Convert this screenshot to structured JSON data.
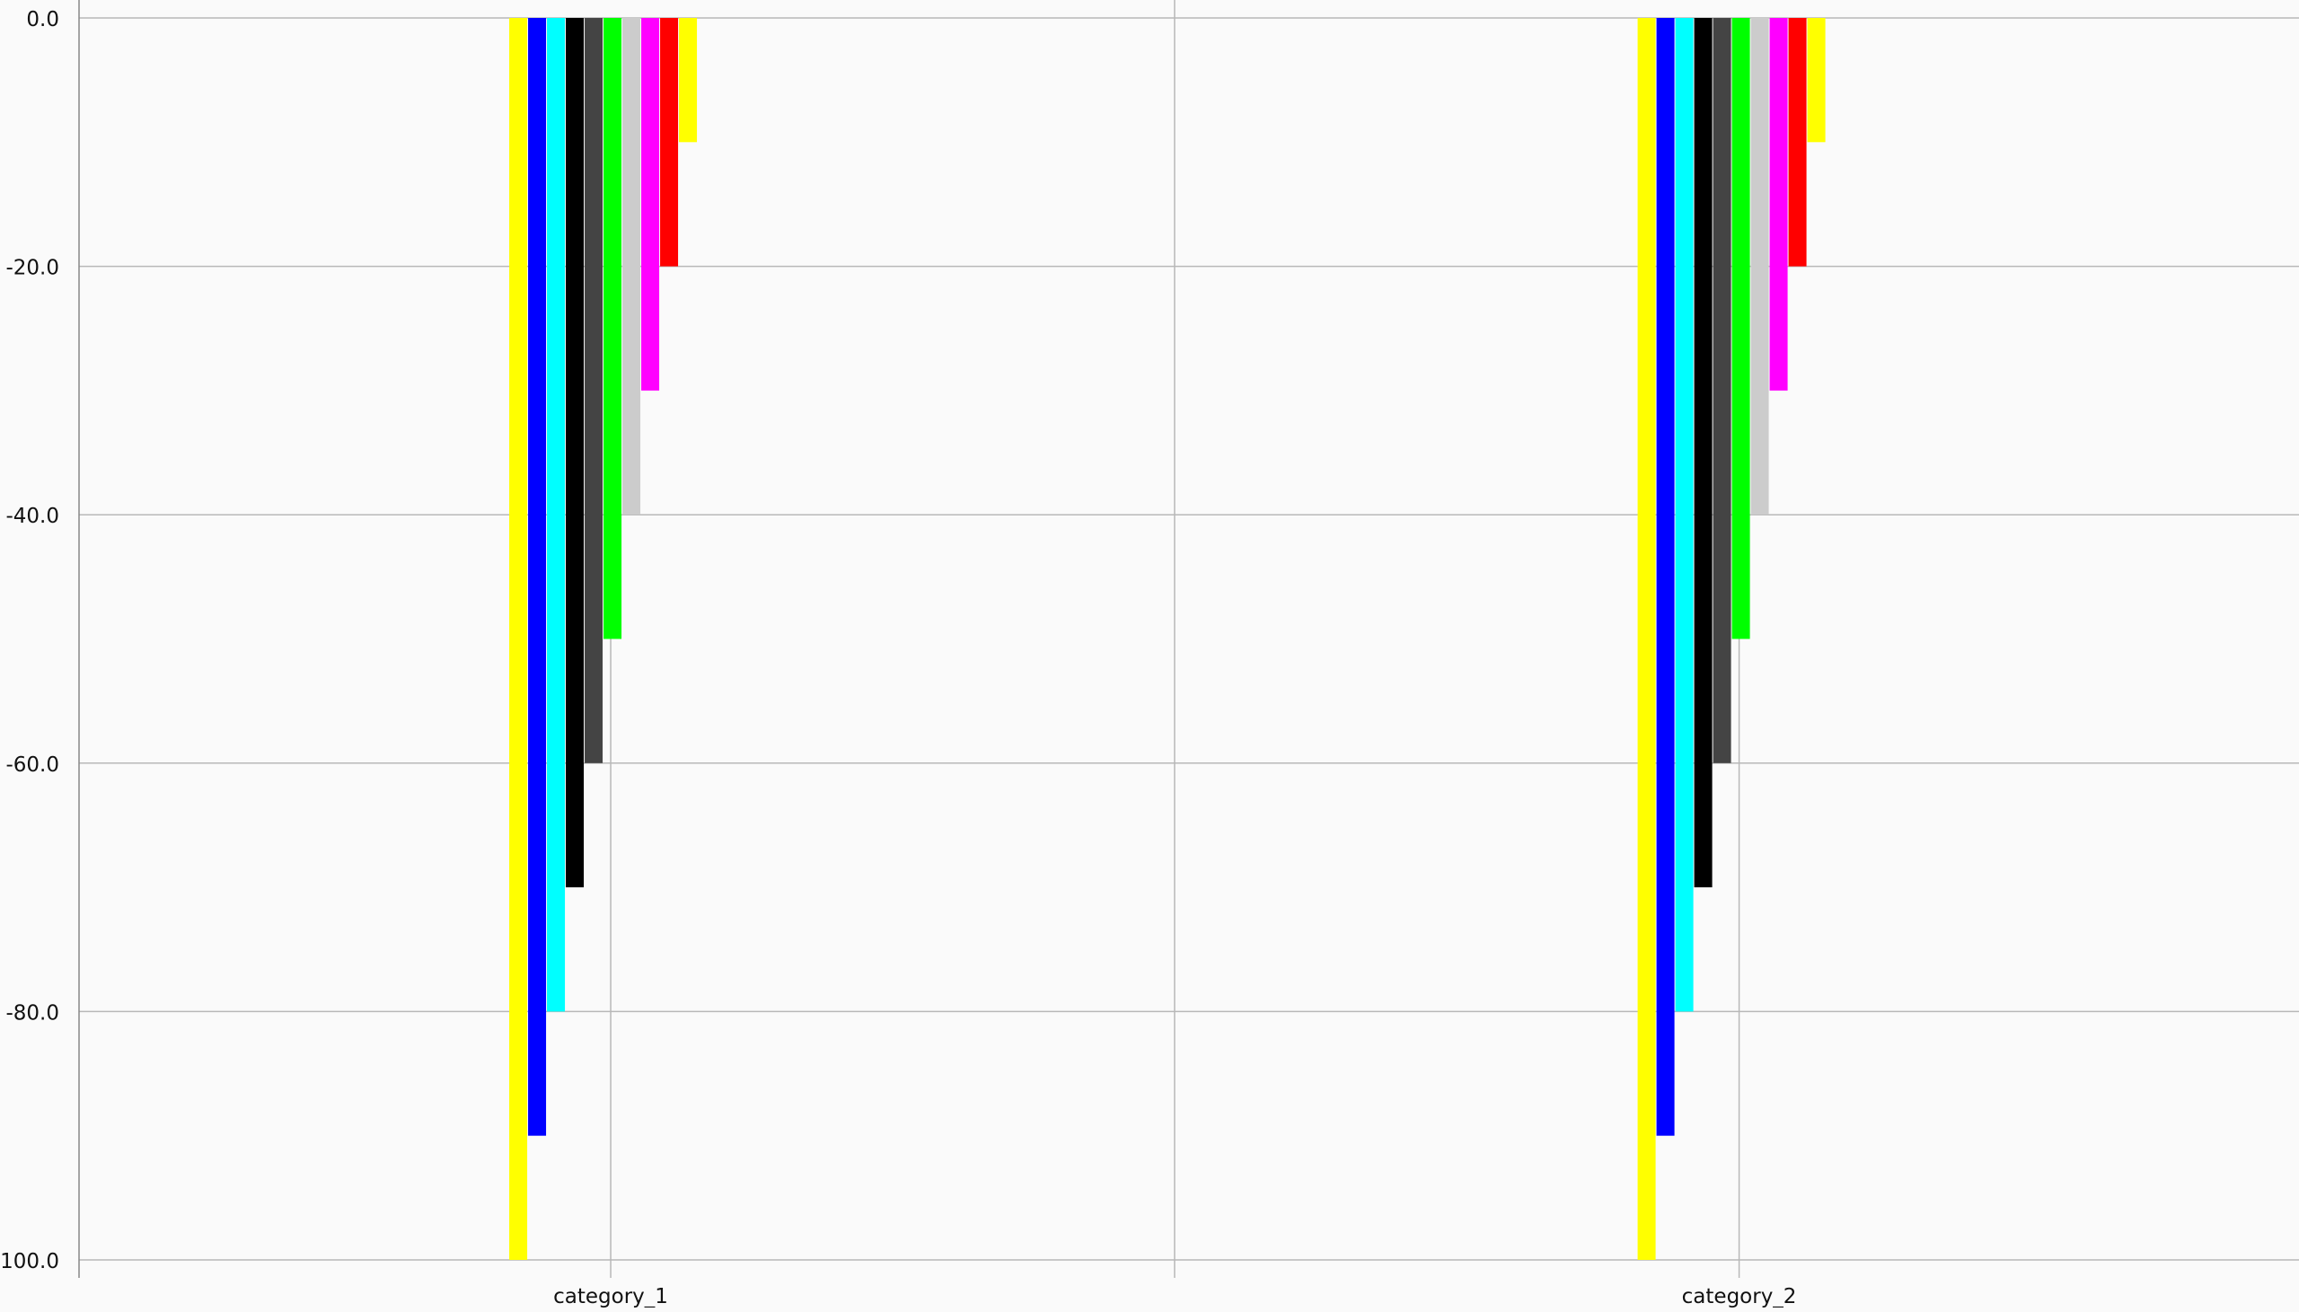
{
  "chart_data": {
    "type": "bar",
    "categories": [
      "category_1",
      "category_2"
    ],
    "ylim": [
      -100,
      0
    ],
    "y_ticks": [
      0,
      -20,
      -40,
      -60,
      -80,
      -100
    ],
    "y_tick_labels": [
      "0.0",
      "-20.0",
      "-40.0",
      "-60.0",
      "-80.0",
      "-100.0"
    ],
    "grid": true,
    "series": [
      {
        "color": "#ffff00",
        "values": [
          -100,
          -100
        ]
      },
      {
        "color": "#0000ff",
        "values": [
          -90,
          -90
        ]
      },
      {
        "color": "#00ffff",
        "values": [
          -80,
          -80
        ]
      },
      {
        "color": "#000000",
        "values": [
          -70,
          -70
        ]
      },
      {
        "color": "#444444",
        "values": [
          -60,
          -60
        ]
      },
      {
        "color": "#00ff00",
        "values": [
          -50,
          -50
        ]
      },
      {
        "color": "#cccccc",
        "values": [
          -40,
          -40
        ]
      },
      {
        "color": "#ff00ff",
        "values": [
          -30,
          -30
        ]
      },
      {
        "color": "#ff0000",
        "values": [
          -20,
          -20
        ]
      },
      {
        "color": "#ffff00",
        "values": [
          -10,
          -10
        ]
      }
    ]
  }
}
